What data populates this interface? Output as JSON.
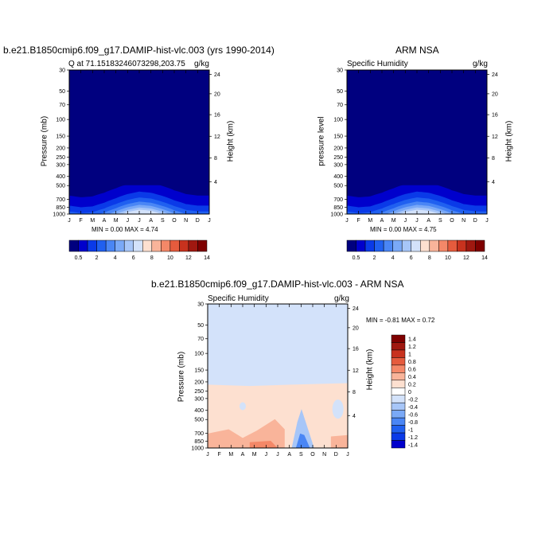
{
  "panels": {
    "model": {
      "title": "b.e21.B1850cmip6.f09_g17.DAMIP-hist-vlc.003 (yrs 1990-2014)",
      "left_label": "Q at 71.15183246073298,203.75",
      "right_label": "g/kg",
      "ylabel": "Pressure (mb)",
      "y2label": "Height (km)",
      "stats": "MIN =   0.00 MAX =   4.74"
    },
    "obs": {
      "title": "ARM NSA",
      "left_label": "Specific Humidity",
      "right_label": "g/kg",
      "ylabel": "pressure level",
      "y2label": "Height (km)",
      "stats": "MIN =   0.00 MAX =   4.75"
    },
    "diff": {
      "title": "b.e21.B1850cmip6.f09_g17.DAMIP-hist-vlc.003 - ARM NSA",
      "left_label": "Specific Humidity",
      "right_label": "g/kg",
      "ylabel": "Pressure (mb)",
      "y2label": "Height (km)",
      "stats": "MIN =  -0.81 MAX =   0.72"
    }
  },
  "chart_data": [
    {
      "type": "heatmap",
      "name_ref": "model",
      "x": [
        "J",
        "F",
        "M",
        "A",
        "M",
        "J",
        "J",
        "A",
        "S",
        "O",
        "N",
        "D",
        "J"
      ],
      "pressure_ticks": [
        "30",
        "50",
        "70",
        "100",
        "150",
        "200",
        "250",
        "300",
        "400",
        "500",
        "700",
        "850",
        "1000"
      ],
      "height_ticks": [
        "24",
        "20",
        "16",
        "12",
        "8",
        "4"
      ],
      "seasonal_surface_max_gkg": [
        1.8,
        1.6,
        1.7,
        2.2,
        3.0,
        4.0,
        4.74,
        4.4,
        3.5,
        2.6,
        2.0,
        1.8,
        1.8
      ],
      "colorbar_ticks": [
        "0.5",
        "2",
        "4",
        "6",
        "8",
        "10",
        "12",
        "14"
      ]
    },
    {
      "type": "heatmap",
      "name_ref": "obs",
      "x": [
        "J",
        "F",
        "M",
        "A",
        "M",
        "J",
        "J",
        "A",
        "S",
        "O",
        "N",
        "D",
        "J"
      ],
      "pressure_ticks": [
        "30",
        "50",
        "70",
        "100",
        "150",
        "200",
        "250",
        "300",
        "400",
        "500",
        "700",
        "850",
        "1000"
      ],
      "height_ticks": [
        "24",
        "20",
        "16",
        "12",
        "8",
        "4"
      ],
      "seasonal_surface_max_gkg": [
        1.8,
        1.6,
        1.7,
        2.2,
        3.0,
        4.0,
        4.75,
        4.4,
        3.5,
        2.6,
        2.0,
        1.8,
        1.8
      ],
      "colorbar_ticks": [
        "0.5",
        "2",
        "4",
        "6",
        "8",
        "10",
        "12",
        "14"
      ]
    },
    {
      "type": "heatmap",
      "name_ref": "diff",
      "x": [
        "J",
        "F",
        "M",
        "A",
        "M",
        "J",
        "J",
        "A",
        "S",
        "O",
        "N",
        "D",
        "J"
      ],
      "pressure_ticks": [
        "30",
        "50",
        "70",
        "100",
        "150",
        "200",
        "250",
        "300",
        "400",
        "500",
        "700",
        "850",
        "1000"
      ],
      "height_ticks": [
        "24",
        "20",
        "16",
        "12",
        "8",
        "4"
      ],
      "colorbar_levels": [
        "1.4",
        "1.2",
        "1",
        "0.8",
        "0.6",
        "0.4",
        "0.2",
        "0",
        "-0.2",
        "-0.4",
        "-0.6",
        "-0.8",
        "-1",
        "-1.2",
        "-1.4"
      ]
    }
  ],
  "colors": {
    "q_levels": [
      "#00007f",
      "#0000cc",
      "#0a3ae8",
      "#2060f0",
      "#4a86f5",
      "#7aa9f7",
      "#a7c6f8",
      "#d3e2fa",
      "#fde0d0",
      "#f9b49a",
      "#f48868",
      "#e55b3d",
      "#c8321e",
      "#a01810",
      "#7f0000"
    ],
    "diff_levels": [
      "#7f0000",
      "#a01810",
      "#c8321e",
      "#e55b3d",
      "#f48868",
      "#f9b49a",
      "#fde0d0",
      "#ffffff",
      "#d3e2fa",
      "#a7c6f8",
      "#7aa9f7",
      "#4a86f5",
      "#2060f0",
      "#0a3ae8",
      "#0000cc"
    ]
  }
}
